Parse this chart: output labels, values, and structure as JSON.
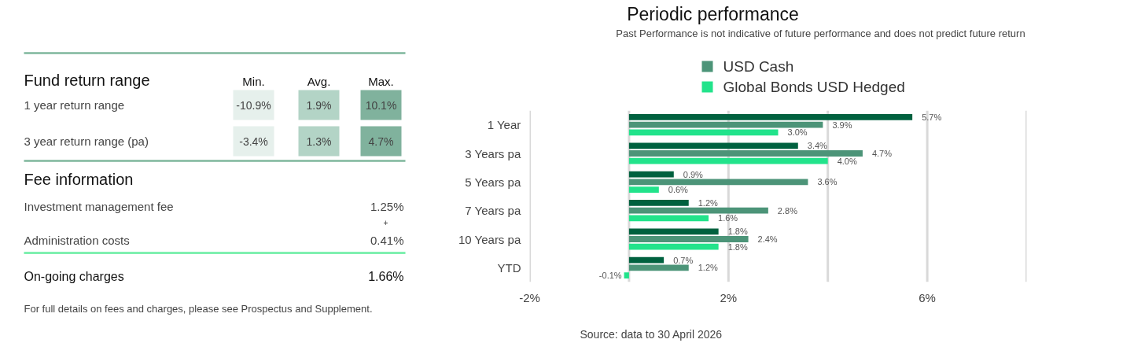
{
  "chart_data": [
    {
      "type": "other",
      "annotations": [
        "Fund return range",
        "Min.",
        "Avg.",
        "Max.",
        "1 year return range",
        "-10.9%",
        "1.9%",
        "10.1%",
        "3 year return range (pa)",
        "-3.4%",
        "1.3%",
        "4.7%",
        "Fee information",
        "Investment management fee",
        "1.25%",
        "+",
        "Administration costs",
        "0.41%",
        "On-going charges",
        "1.66%",
        "For full details on fees and charges, please see Prospectus and Supplement."
      ]
    },
    {
      "type": "bar",
      "orientation": "horizontal",
      "title": "Periodic performance",
      "subtitle": "Past Performance is not indicative of future performance and does not predict future return",
      "annotations": [
        "Source: data to 30 April 2026"
      ],
      "categories": [
        "1 Year",
        "3 Years pa",
        "5 Years pa",
        "7 Years pa",
        "10 Years pa",
        "YTD"
      ],
      "series": [
        {
          "color": "#00613f",
          "values": [
            5.7,
            3.4,
            0.9,
            1.2,
            1.8,
            0.7
          ],
          "value_labels": [
            "5.7%",
            "3.4%",
            "0.9%",
            "1.2%",
            "1.8%",
            "0.7%"
          ]
        },
        {
          "name": "USD Cash",
          "color": "#4c9478",
          "values": [
            3.9,
            4.7,
            3.6,
            2.8,
            2.4,
            1.2
          ],
          "value_labels": [
            "3.9%",
            "4.7%",
            "3.6%",
            "2.8%",
            "2.4%",
            "1.2%"
          ]
        },
        {
          "name": "Global Bonds USD Hedged",
          "color": "#22e38b",
          "values": [
            3.0,
            4.0,
            0.6,
            1.6,
            1.8,
            -0.1
          ],
          "value_labels": [
            "3.0%",
            "4.0%",
            "0.6%",
            "1.6%",
            "1.8%",
            "-0.1%"
          ]
        }
      ],
      "xlim": [
        -2,
        8
      ],
      "xticks": [
        {
          "value": -2,
          "label": "-2%"
        },
        {
          "value": 0,
          "label": null
        },
        {
          "value": 2,
          "label": "2%"
        },
        {
          "value": 4,
          "label": null
        },
        {
          "value": 6,
          "label": "6%"
        },
        {
          "value": 8,
          "label": null
        }
      ],
      "grid": "x",
      "legend": "top"
    }
  ]
}
